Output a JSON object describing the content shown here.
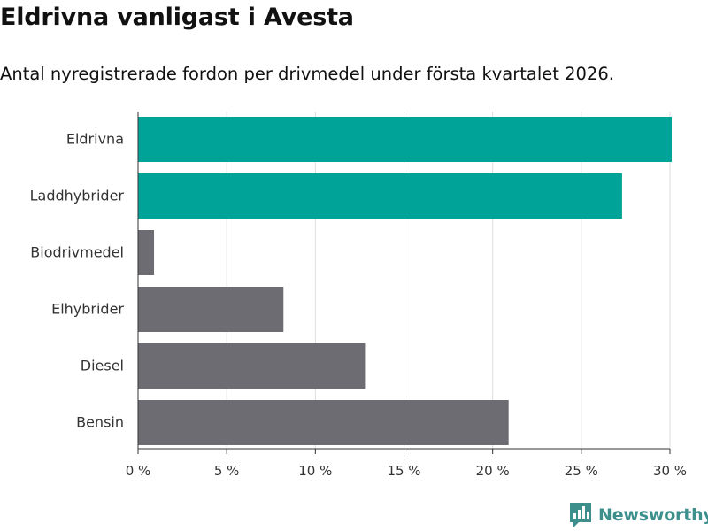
{
  "header": {
    "title": "Eldrivna vanligast i Avesta",
    "subtitle": "Antal nyregistrerade fordon per drivmedel under första kvartalet 2026."
  },
  "brand": {
    "name": "Newsworthy",
    "icon": "newsworthy-logo-icon"
  },
  "colors": {
    "highlight": "#00a398",
    "default": "#6d6c72",
    "grid": "#dddddd",
    "axis": "#333333"
  },
  "chart_data": {
    "type": "bar",
    "orientation": "horizontal",
    "title": "Eldrivna vanligast i Avesta",
    "subtitle": "Antal nyregistrerade fordon per drivmedel under första kvartalet 2026.",
    "xlabel": "",
    "ylabel": "",
    "xlim": [
      0,
      30
    ],
    "unit": "%",
    "grid": true,
    "categories": [
      "Eldrivna",
      "Laddhybrider",
      "Biodrivmedel",
      "Elhybrider",
      "Diesel",
      "Bensin"
    ],
    "values": [
      30.1,
      27.3,
      0.9,
      8.2,
      12.8,
      20.9
    ],
    "highlighted": [
      true,
      true,
      false,
      false,
      false,
      false
    ],
    "ticks": [
      0,
      5,
      10,
      15,
      20,
      25,
      30
    ],
    "tick_labels": [
      "0 %",
      "5 %",
      "10 %",
      "15 %",
      "20 %",
      "25 %",
      "30 %"
    ]
  }
}
